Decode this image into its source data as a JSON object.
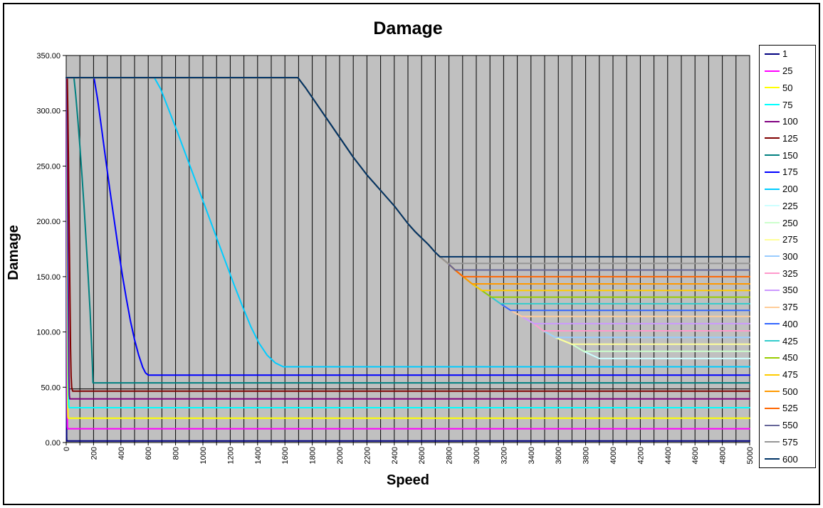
{
  "title": "Damage",
  "x_axis": {
    "title": "Speed",
    "min": 0,
    "max": 5000,
    "label_step": 200,
    "grid_step": 100,
    "tick_labels": [
      "0",
      "200",
      "400",
      "600",
      "800",
      "1000",
      "1200",
      "1400",
      "1600",
      "1800",
      "2000",
      "2200",
      "2400",
      "2600",
      "2800",
      "3000",
      "3200",
      "3400",
      "3600",
      "3800",
      "4000",
      "4200",
      "4400",
      "4600",
      "4800",
      "5000"
    ]
  },
  "y_axis": {
    "title": "Damage",
    "min": 0,
    "max": 350,
    "label_step": 50,
    "tick_labels": [
      "0.00",
      "50.00",
      "100.00",
      "150.00",
      "200.00",
      "250.00",
      "300.00",
      "350.00"
    ]
  },
  "plot": {
    "bg_color": "#C0C0C0",
    "grid_color": "#000000",
    "axis_color": "#000000",
    "grid": "vertical-only"
  },
  "legend": {
    "position": "right",
    "entries": [
      "1",
      "25",
      "50",
      "75",
      "100",
      "125",
      "150",
      "175",
      "200",
      "225",
      "250",
      "275",
      "300",
      "325",
      "350",
      "375",
      "400",
      "425",
      "450",
      "475",
      "500",
      "525",
      "550",
      "575",
      "600"
    ]
  },
  "chart_data": {
    "type": "line",
    "title": "Damage",
    "xlabel": "Speed",
    "ylabel": "Damage",
    "xlim": [
      0,
      5000
    ],
    "ylim": [
      0,
      350
    ],
    "grid_x_step": 100,
    "legend_position": "right",
    "damage_cap": 330,
    "unlabeled_line": {
      "y": 48.5,
      "color": "#000000",
      "note": "thin black horizontal line spanning full width"
    },
    "shared_descent": [
      [
        1695,
        330
      ],
      [
        1750,
        321
      ],
      [
        1800,
        312
      ],
      [
        1850,
        303
      ],
      [
        1900,
        294
      ],
      [
        1950,
        285
      ],
      [
        2000,
        276
      ],
      [
        2050,
        267
      ],
      [
        2100,
        258
      ],
      [
        2150,
        250
      ],
      [
        2200,
        242
      ],
      [
        2250,
        235
      ],
      [
        2300,
        228
      ],
      [
        2350,
        221
      ],
      [
        2400,
        214
      ],
      [
        2450,
        206
      ],
      [
        2500,
        198
      ],
      [
        2550,
        191
      ],
      [
        2600,
        185
      ],
      [
        2650,
        179
      ],
      [
        2700,
        172
      ],
      [
        2734,
        168
      ],
      [
        2793,
        162
      ],
      [
        2845,
        156
      ],
      [
        2904,
        150
      ],
      [
        2970,
        143.5
      ],
      [
        3040,
        137.5
      ],
      [
        3109,
        131.5
      ],
      [
        3178,
        125.5
      ],
      [
        3252,
        119.5
      ],
      [
        3332,
        114
      ],
      [
        3422,
        107.5
      ],
      [
        3490,
        101
      ],
      [
        3578,
        95
      ],
      [
        3698,
        89
      ],
      [
        3786,
        82.5
      ],
      [
        3900,
        76
      ]
    ],
    "series": [
      {
        "label": "1",
        "color": "#000080",
        "floor": 1.5,
        "points": [
          [
            0,
            330
          ],
          [
            1,
            200
          ],
          [
            2,
            60
          ],
          [
            3,
            5
          ],
          [
            4,
            1.5
          ],
          [
            5000,
            1.5
          ]
        ]
      },
      {
        "label": "25",
        "color": "#FF00FF",
        "floor": 12.5,
        "points": [
          [
            0,
            330
          ],
          [
            2,
            330
          ],
          [
            3,
            240
          ],
          [
            5,
            120
          ],
          [
            7,
            40
          ],
          [
            9,
            14
          ],
          [
            11,
            12.5
          ],
          [
            5000,
            12.5
          ]
        ]
      },
      {
        "label": "50",
        "color": "#FFFF00",
        "floor": 22,
        "points": [
          [
            0,
            330
          ],
          [
            3,
            330
          ],
          [
            5,
            250
          ],
          [
            7,
            160
          ],
          [
            9,
            85
          ],
          [
            11,
            35
          ],
          [
            13,
            23
          ],
          [
            15,
            22
          ],
          [
            5000,
            22
          ]
        ]
      },
      {
        "label": "75",
        "color": "#00FFFF",
        "floor": 31.5,
        "points": [
          [
            0,
            330
          ],
          [
            4,
            330
          ],
          [
            6,
            270
          ],
          [
            9,
            190
          ],
          [
            12,
            115
          ],
          [
            15,
            55
          ],
          [
            18,
            34
          ],
          [
            21,
            31.5
          ],
          [
            5000,
            31.5
          ]
        ]
      },
      {
        "label": "100",
        "color": "#800080",
        "floor": 39.5,
        "points": [
          [
            0,
            330
          ],
          [
            5,
            330
          ],
          [
            8,
            280
          ],
          [
            11,
            220
          ],
          [
            14,
            160
          ],
          [
            17,
            105
          ],
          [
            20,
            62
          ],
          [
            23,
            43
          ],
          [
            26,
            39.5
          ],
          [
            5000,
            39.5
          ]
        ]
      },
      {
        "label": "125",
        "color": "#800000",
        "floor": 46.5,
        "points": [
          [
            0,
            330
          ],
          [
            8,
            330
          ],
          [
            12,
            300
          ],
          [
            16,
            260
          ],
          [
            20,
            215
          ],
          [
            24,
            170
          ],
          [
            28,
            125
          ],
          [
            32,
            85
          ],
          [
            36,
            60
          ],
          [
            40,
            50
          ],
          [
            47,
            46.5
          ],
          [
            5000,
            46.5
          ]
        ]
      },
      {
        "label": "150",
        "color": "#008080",
        "floor": 54,
        "points": [
          [
            0,
            330
          ],
          [
            57,
            330
          ],
          [
            70,
            314
          ],
          [
            85,
            292
          ],
          [
            100,
            268
          ],
          [
            115,
            242
          ],
          [
            130,
            214
          ],
          [
            145,
            184
          ],
          [
            160,
            152
          ],
          [
            175,
            118
          ],
          [
            185,
            90
          ],
          [
            192,
            68
          ],
          [
            196,
            54
          ],
          [
            5000,
            54
          ]
        ]
      },
      {
        "label": "175",
        "color": "#0000FF",
        "floor": 61,
        "points": [
          [
            0,
            330
          ],
          [
            203,
            330
          ],
          [
            230,
            310
          ],
          [
            260,
            283
          ],
          [
            290,
            255
          ],
          [
            320,
            228
          ],
          [
            350,
            202
          ],
          [
            380,
            176
          ],
          [
            410,
            152
          ],
          [
            440,
            130
          ],
          [
            470,
            110
          ],
          [
            500,
            93
          ],
          [
            530,
            79
          ],
          [
            560,
            68
          ],
          [
            580,
            63
          ],
          [
            600,
            61
          ],
          [
            5000,
            61
          ]
        ]
      },
      {
        "label": "200",
        "color": "#00CCFF",
        "floor": 68.5,
        "points": [
          [
            0,
            330
          ],
          [
            645,
            330
          ],
          [
            690,
            320
          ],
          [
            750,
            301
          ],
          [
            810,
            282
          ],
          [
            870,
            262
          ],
          [
            930,
            242
          ],
          [
            990,
            222
          ],
          [
            1050,
            202
          ],
          [
            1110,
            182
          ],
          [
            1170,
            162
          ],
          [
            1230,
            142
          ],
          [
            1290,
            123
          ],
          [
            1350,
            105
          ],
          [
            1410,
            90
          ],
          [
            1470,
            79
          ],
          [
            1530,
            72
          ],
          [
            1588,
            68.5
          ],
          [
            5000,
            68.5
          ]
        ]
      },
      {
        "label": "225",
        "color": "#CCFFFF",
        "floor": 76,
        "use_shared": true,
        "peel_x": 3900
      },
      {
        "label": "250",
        "color": "#CCFFCC",
        "floor": 82.5,
        "use_shared": true,
        "peel_x": 3786
      },
      {
        "label": "275",
        "color": "#FFFF99",
        "floor": 89,
        "use_shared": true,
        "peel_x": 3698
      },
      {
        "label": "300",
        "color": "#99CCFF",
        "floor": 95,
        "use_shared": true,
        "peel_x": 3578
      },
      {
        "label": "325",
        "color": "#FF99CC",
        "floor": 101,
        "use_shared": true,
        "peel_x": 3490
      },
      {
        "label": "350",
        "color": "#CC99FF",
        "floor": 107.5,
        "use_shared": true,
        "peel_x": 3422
      },
      {
        "label": "375",
        "color": "#FFCC99",
        "floor": 114,
        "use_shared": true,
        "peel_x": 3332
      },
      {
        "label": "400",
        "color": "#3366FF",
        "floor": 119.5,
        "use_shared": true,
        "peel_x": 3252
      },
      {
        "label": "425",
        "color": "#33CCCC",
        "floor": 125.5,
        "use_shared": true,
        "peel_x": 3178
      },
      {
        "label": "450",
        "color": "#99CC00",
        "floor": 131.5,
        "use_shared": true,
        "peel_x": 3109
      },
      {
        "label": "475",
        "color": "#FFCC00",
        "floor": 137.5,
        "use_shared": true,
        "peel_x": 3040
      },
      {
        "label": "500",
        "color": "#FF9900",
        "floor": 143.5,
        "use_shared": true,
        "peel_x": 2970
      },
      {
        "label": "525",
        "color": "#FF6600",
        "floor": 150,
        "use_shared": true,
        "peel_x": 2904
      },
      {
        "label": "550",
        "color": "#666699",
        "floor": 156,
        "use_shared": true,
        "peel_x": 2845
      },
      {
        "label": "575",
        "color": "#969696",
        "floor": 162,
        "use_shared": true,
        "peel_x": 2793
      },
      {
        "label": "600",
        "color": "#003366",
        "floor": 168,
        "use_shared": true,
        "peel_x": 2734
      }
    ]
  }
}
